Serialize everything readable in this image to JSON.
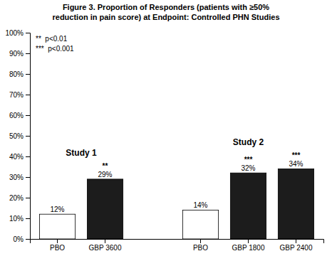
{
  "chart_data": {
    "type": "bar",
    "title": "Figure 3. Proportion of Responders (patients with ≥50%\nreduction in pain score) at Endpoint: Controlled PHN Studies",
    "categories": [
      "PBO",
      "GBP 3600",
      "PBO",
      "GBP 1800",
      "GBP 2400"
    ],
    "values": [
      12,
      29,
      14,
      32,
      34
    ],
    "value_labels": [
      "12%",
      "29%",
      "14%",
      "32%",
      "34%"
    ],
    "data_labels": true,
    "colors": [
      "#ffffff",
      "#1c1c1c",
      "#ffffff",
      "#1c1c1c",
      "#1c1c1c"
    ],
    "annotations": [
      null,
      "**",
      null,
      "***",
      "***"
    ],
    "group_labels": [
      "Study 1",
      "Study 2"
    ],
    "notes": [
      "**  p<0.01",
      "***  p<0.001"
    ],
    "ylim": [
      0,
      100
    ],
    "yticks": [
      {
        "value": 0,
        "label": "0%"
      },
      {
        "value": 10,
        "label": "10%"
      },
      {
        "value": 20,
        "label": "20%"
      },
      {
        "value": 30,
        "label": "30%"
      },
      {
        "value": 40,
        "label": "40%"
      },
      {
        "value": 50,
        "label": "50%"
      },
      {
        "value": 60,
        "label": "60%"
      },
      {
        "value": 70,
        "label": "70%"
      },
      {
        "value": 80,
        "label": "80%"
      },
      {
        "value": 90,
        "label": "90%"
      },
      {
        "value": 100,
        "label": "100%"
      }
    ],
    "grid": false
  }
}
